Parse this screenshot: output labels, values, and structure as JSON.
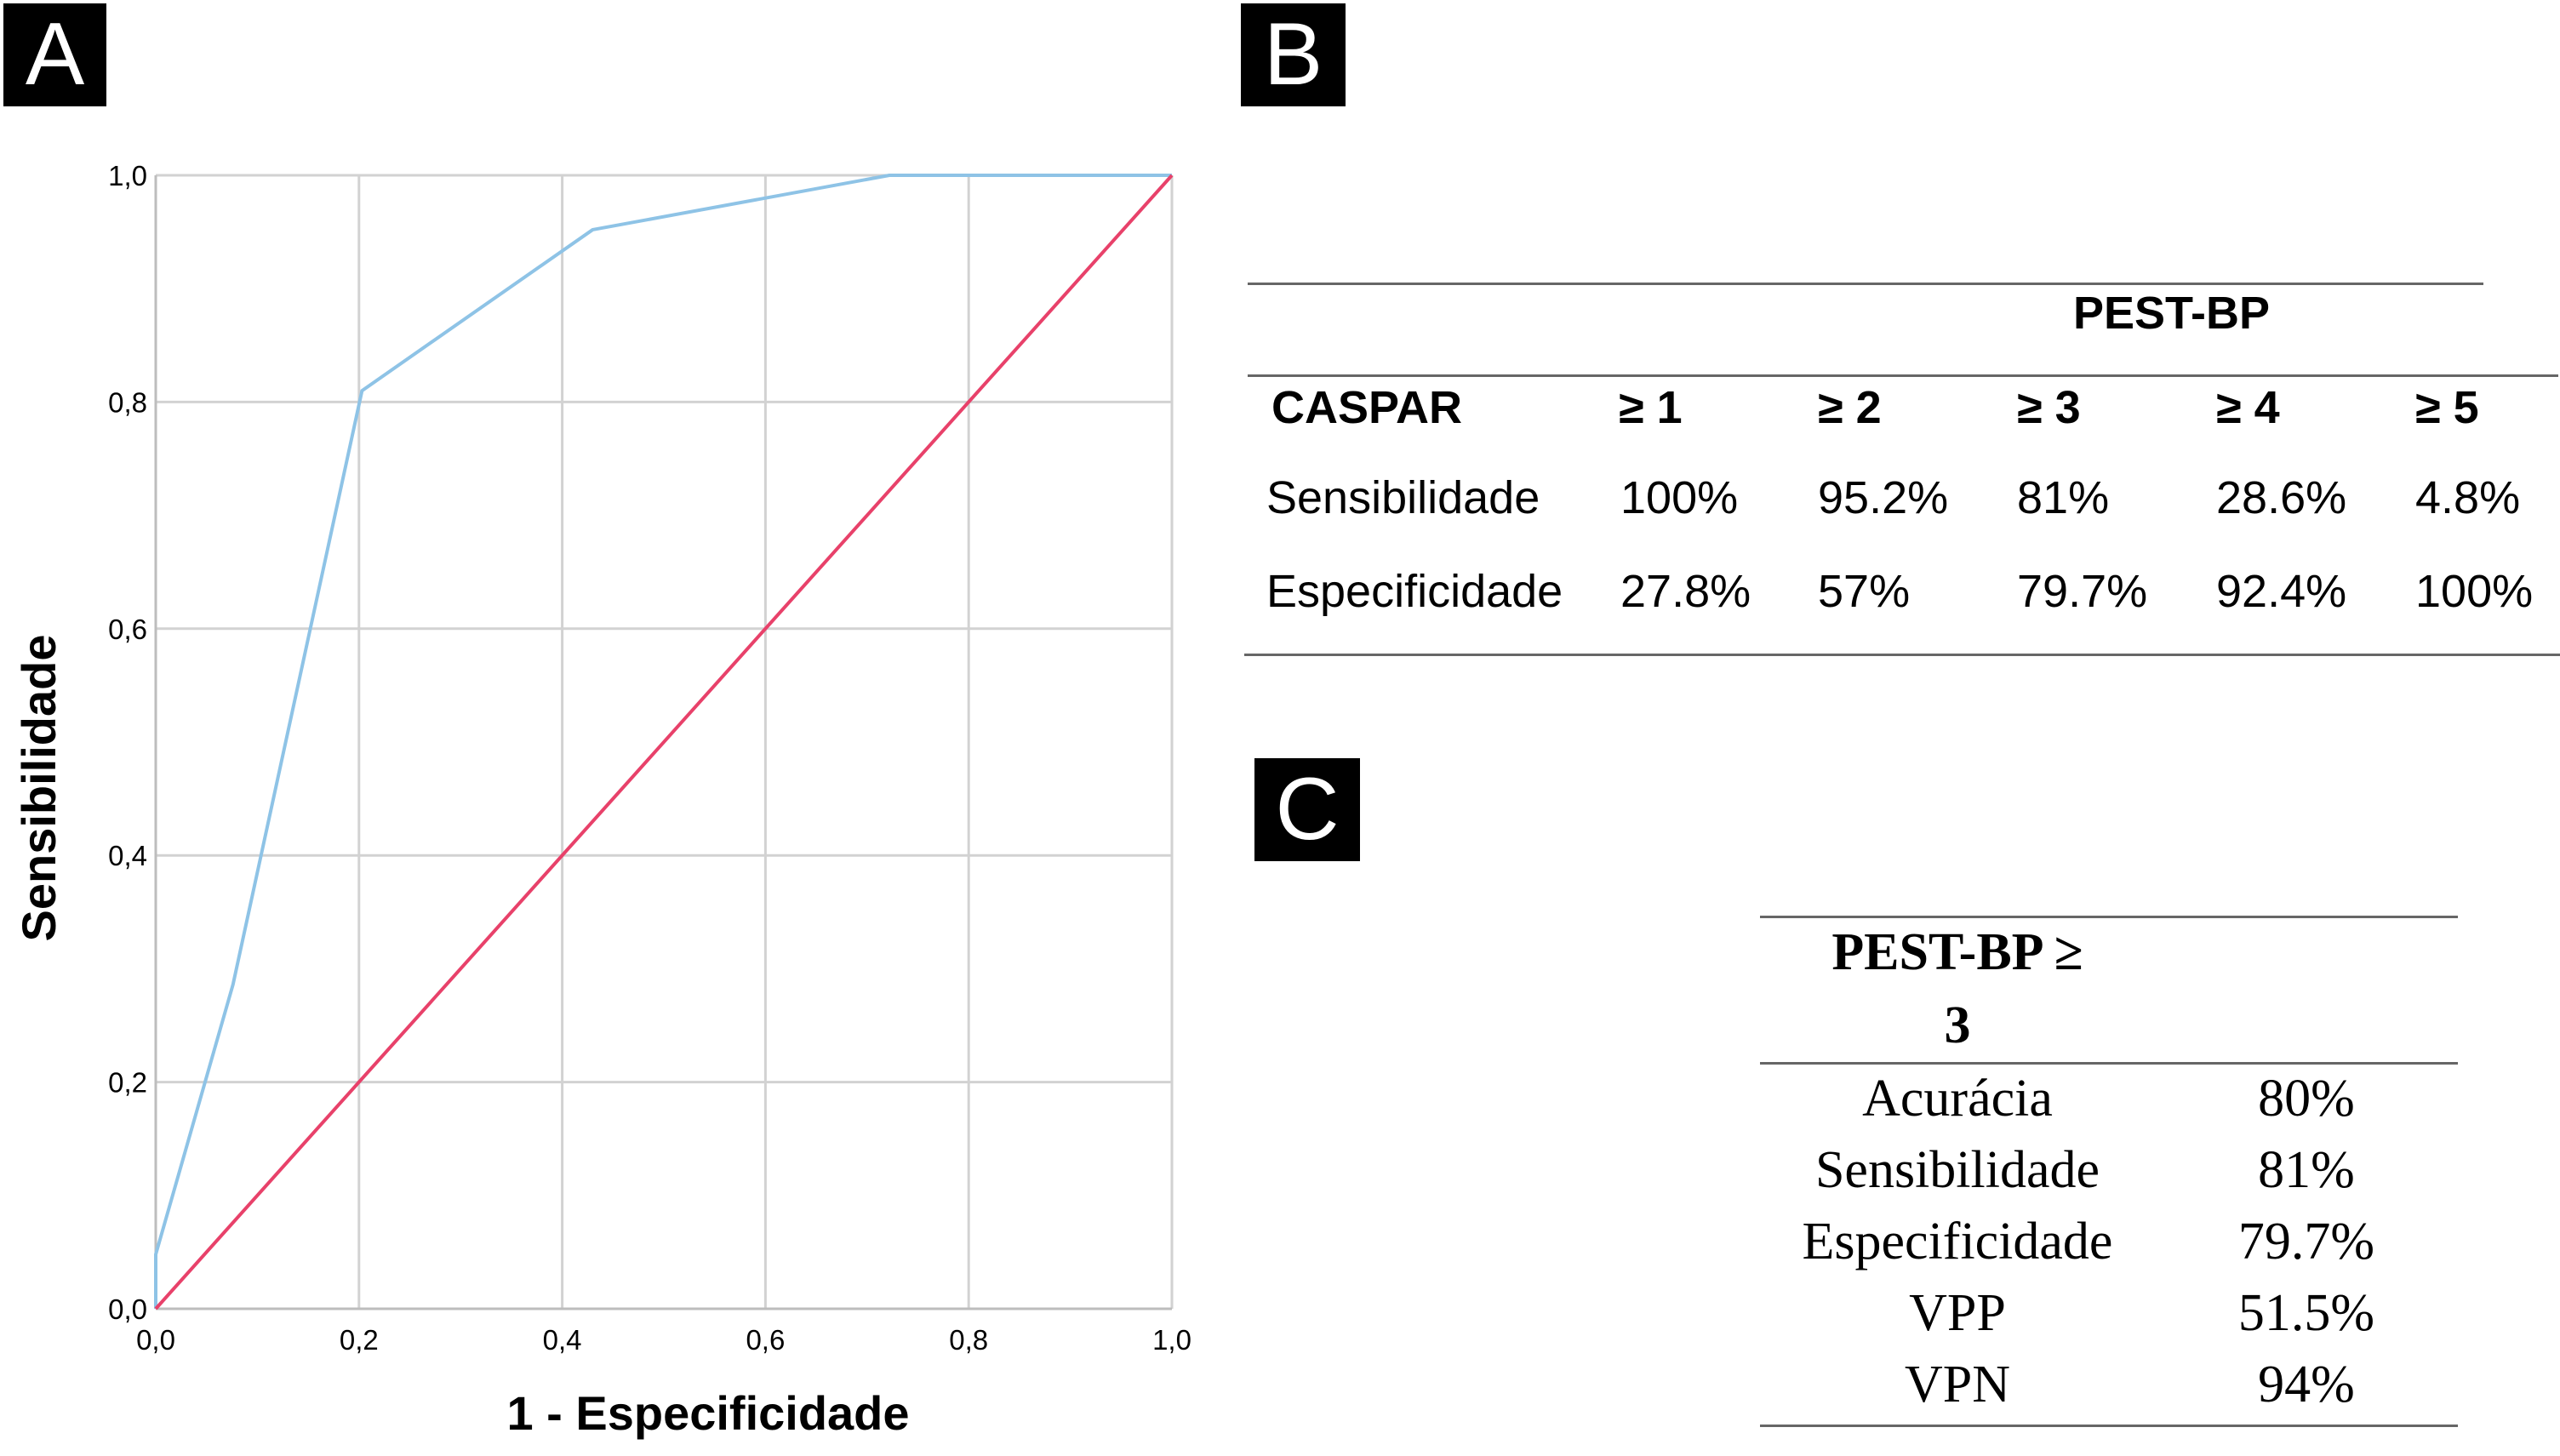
{
  "panels": {
    "a": "A",
    "b": "B",
    "c": "C"
  },
  "chart_data": {
    "type": "line",
    "xlabel": "1 - Especificidade",
    "ylabel": "Sensibilidade",
    "xlim": [
      0,
      1
    ],
    "ylim": [
      0,
      1
    ],
    "x_ticks": [
      "0,0",
      "0,2",
      "0,4",
      "0,6",
      "0,8",
      "1,0"
    ],
    "y_ticks": [
      "0,0",
      "0,2",
      "0,4",
      "0,6",
      "0,8",
      "1,0"
    ],
    "grid": true,
    "series": [
      {
        "color": "#8ec3e6",
        "points": [
          [
            0,
            0
          ],
          [
            0,
            0.048
          ],
          [
            0.076,
            0.286
          ],
          [
            0.203,
            0.81
          ],
          [
            0.43,
            0.952
          ],
          [
            0.722,
            1.0
          ],
          [
            1.0,
            1.0
          ]
        ]
      },
      {
        "color": "#e8416a",
        "points": [
          [
            0,
            0
          ],
          [
            1,
            1
          ]
        ]
      }
    ]
  },
  "table_b": {
    "header": "PEST-BP",
    "row_header": "CASPAR",
    "columns": [
      "≥ 1",
      "≥ 2",
      "≥ 3",
      "≥ 4",
      "≥ 5"
    ],
    "rows": [
      {
        "label": "Sensibilidade",
        "values": [
          "100%",
          "95.2%",
          "81%",
          "28.6%",
          "4.8%"
        ]
      },
      {
        "label": "Especificidade",
        "values": [
          "27.8%",
          "57%",
          "79.7%",
          "92.4%",
          "100%"
        ]
      }
    ]
  },
  "table_c": {
    "header_line1": "PEST-BP ≥",
    "header_line2": "3",
    "rows": [
      {
        "label": "Acurácia",
        "value": "80%"
      },
      {
        "label": "Sensibilidade",
        "value": "81%"
      },
      {
        "label": "Especificidade",
        "value": "79.7%"
      },
      {
        "label": "VPP",
        "value": "51.5%"
      },
      {
        "label": "VPN",
        "value": "94%"
      }
    ]
  }
}
